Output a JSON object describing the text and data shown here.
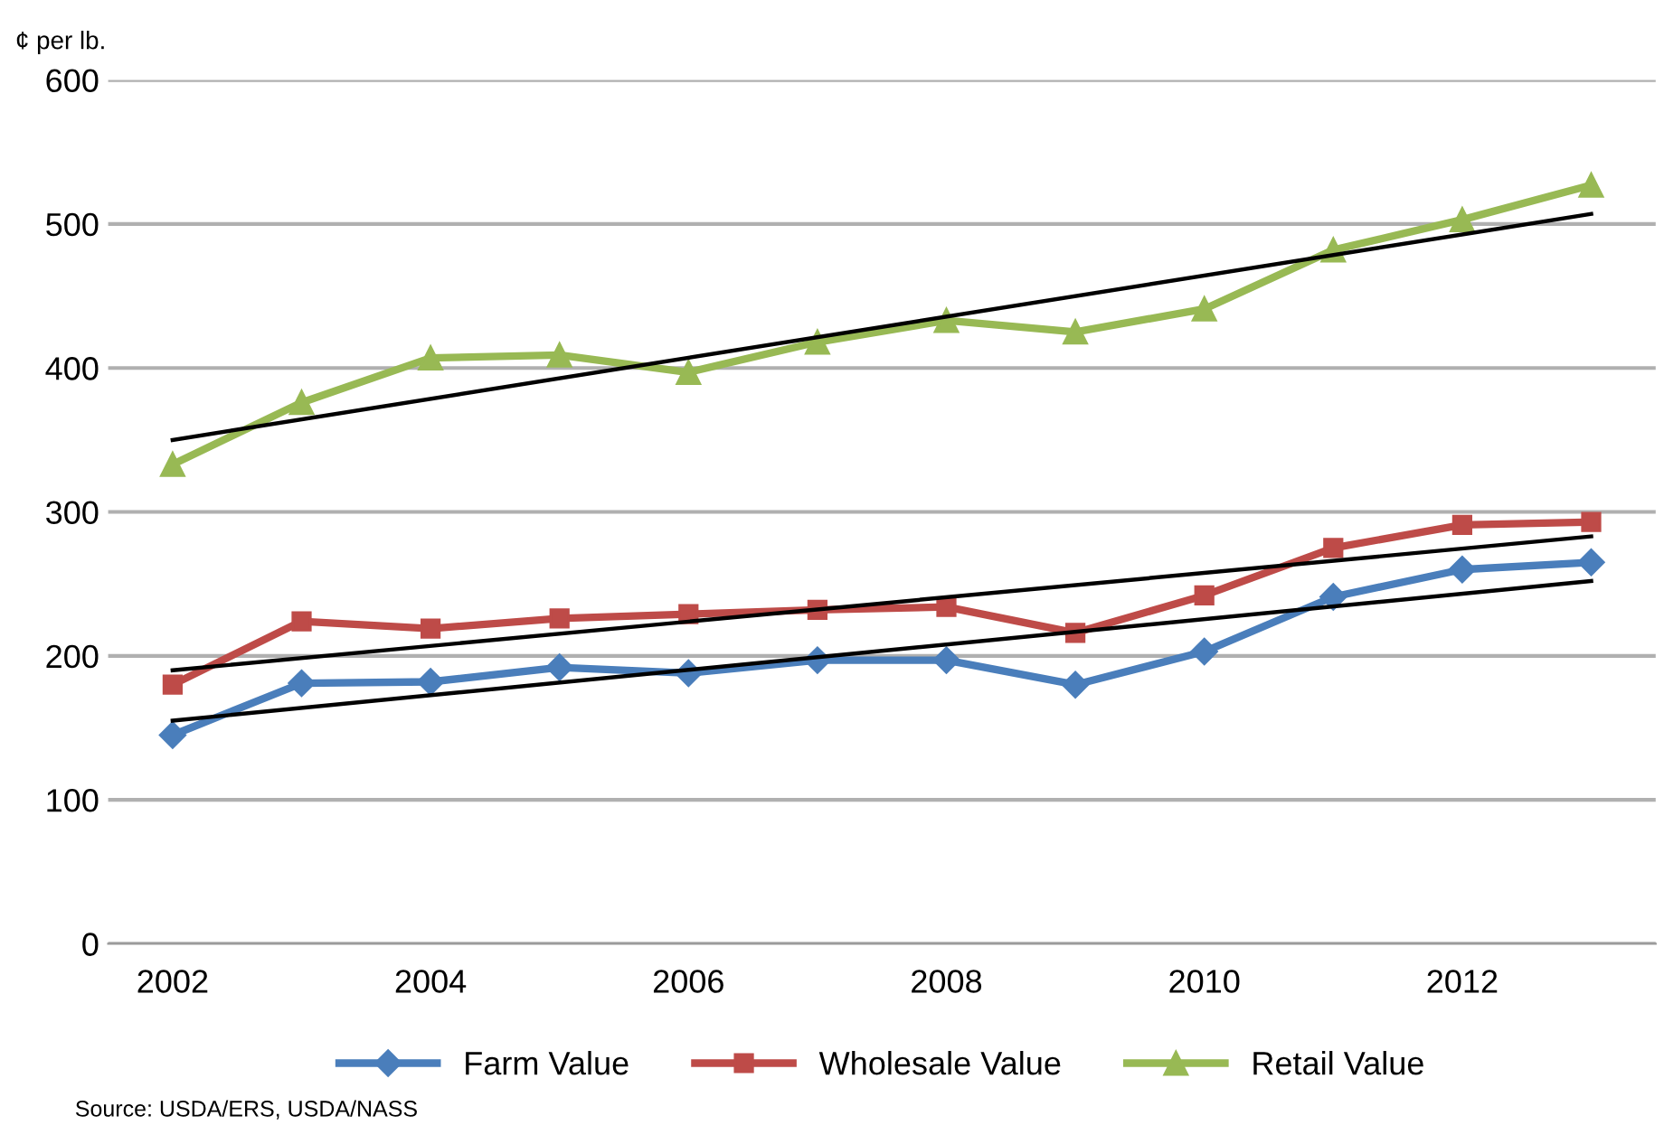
{
  "chart_data": {
    "type": "line",
    "ylabel": "¢ per lb.",
    "x": [
      2002,
      2003,
      2004,
      2005,
      2006,
      2007,
      2008,
      2009,
      2010,
      2011,
      2012,
      2013
    ],
    "series": [
      {
        "name": "Farm Value",
        "color": "#4a7ebb",
        "marker": "diamond",
        "values": [
          145,
          181,
          182,
          192,
          188,
          197,
          197,
          180,
          203,
          241,
          260,
          265
        ]
      },
      {
        "name": "Wholesale Value",
        "color": "#be4b48",
        "marker": "square",
        "values": [
          180,
          224,
          219,
          226,
          229,
          232,
          234,
          216,
          242,
          275,
          291,
          293
        ]
      },
      {
        "name": "Retail Value",
        "color": "#98b954",
        "marker": "triangle",
        "values": [
          333,
          376,
          407,
          409,
          397,
          418,
          433,
          425,
          441,
          482,
          503,
          527
        ]
      },
      {
        "type": "line",
        "color": "#000000",
        "marker": "none",
        "values": [
          155,
          null,
          null,
          null,
          null,
          null,
          null,
          null,
          null,
          null,
          null,
          252
        ]
      },
      {
        "type": "line",
        "color": "#000000",
        "marker": "none",
        "values": [
          190,
          null,
          null,
          null,
          null,
          null,
          null,
          null,
          null,
          null,
          null,
          283
        ]
      },
      {
        "type": "line",
        "color": "#000000",
        "marker": "none",
        "values": [
          350,
          null,
          null,
          null,
          null,
          null,
          null,
          null,
          null,
          null,
          null,
          507
        ]
      }
    ],
    "xlim": [
      2001.5,
      2013.5
    ],
    "xticks": [
      2002,
      2004,
      2006,
      2008,
      2010,
      2012
    ],
    "ylim": [
      0,
      600
    ],
    "yticks": [
      0,
      100,
      200,
      300,
      400,
      500,
      600
    ],
    "grid": "y",
    "legend": "bottom",
    "annotations": [
      "Source: USDA/ERS, USDA/NASS"
    ]
  }
}
